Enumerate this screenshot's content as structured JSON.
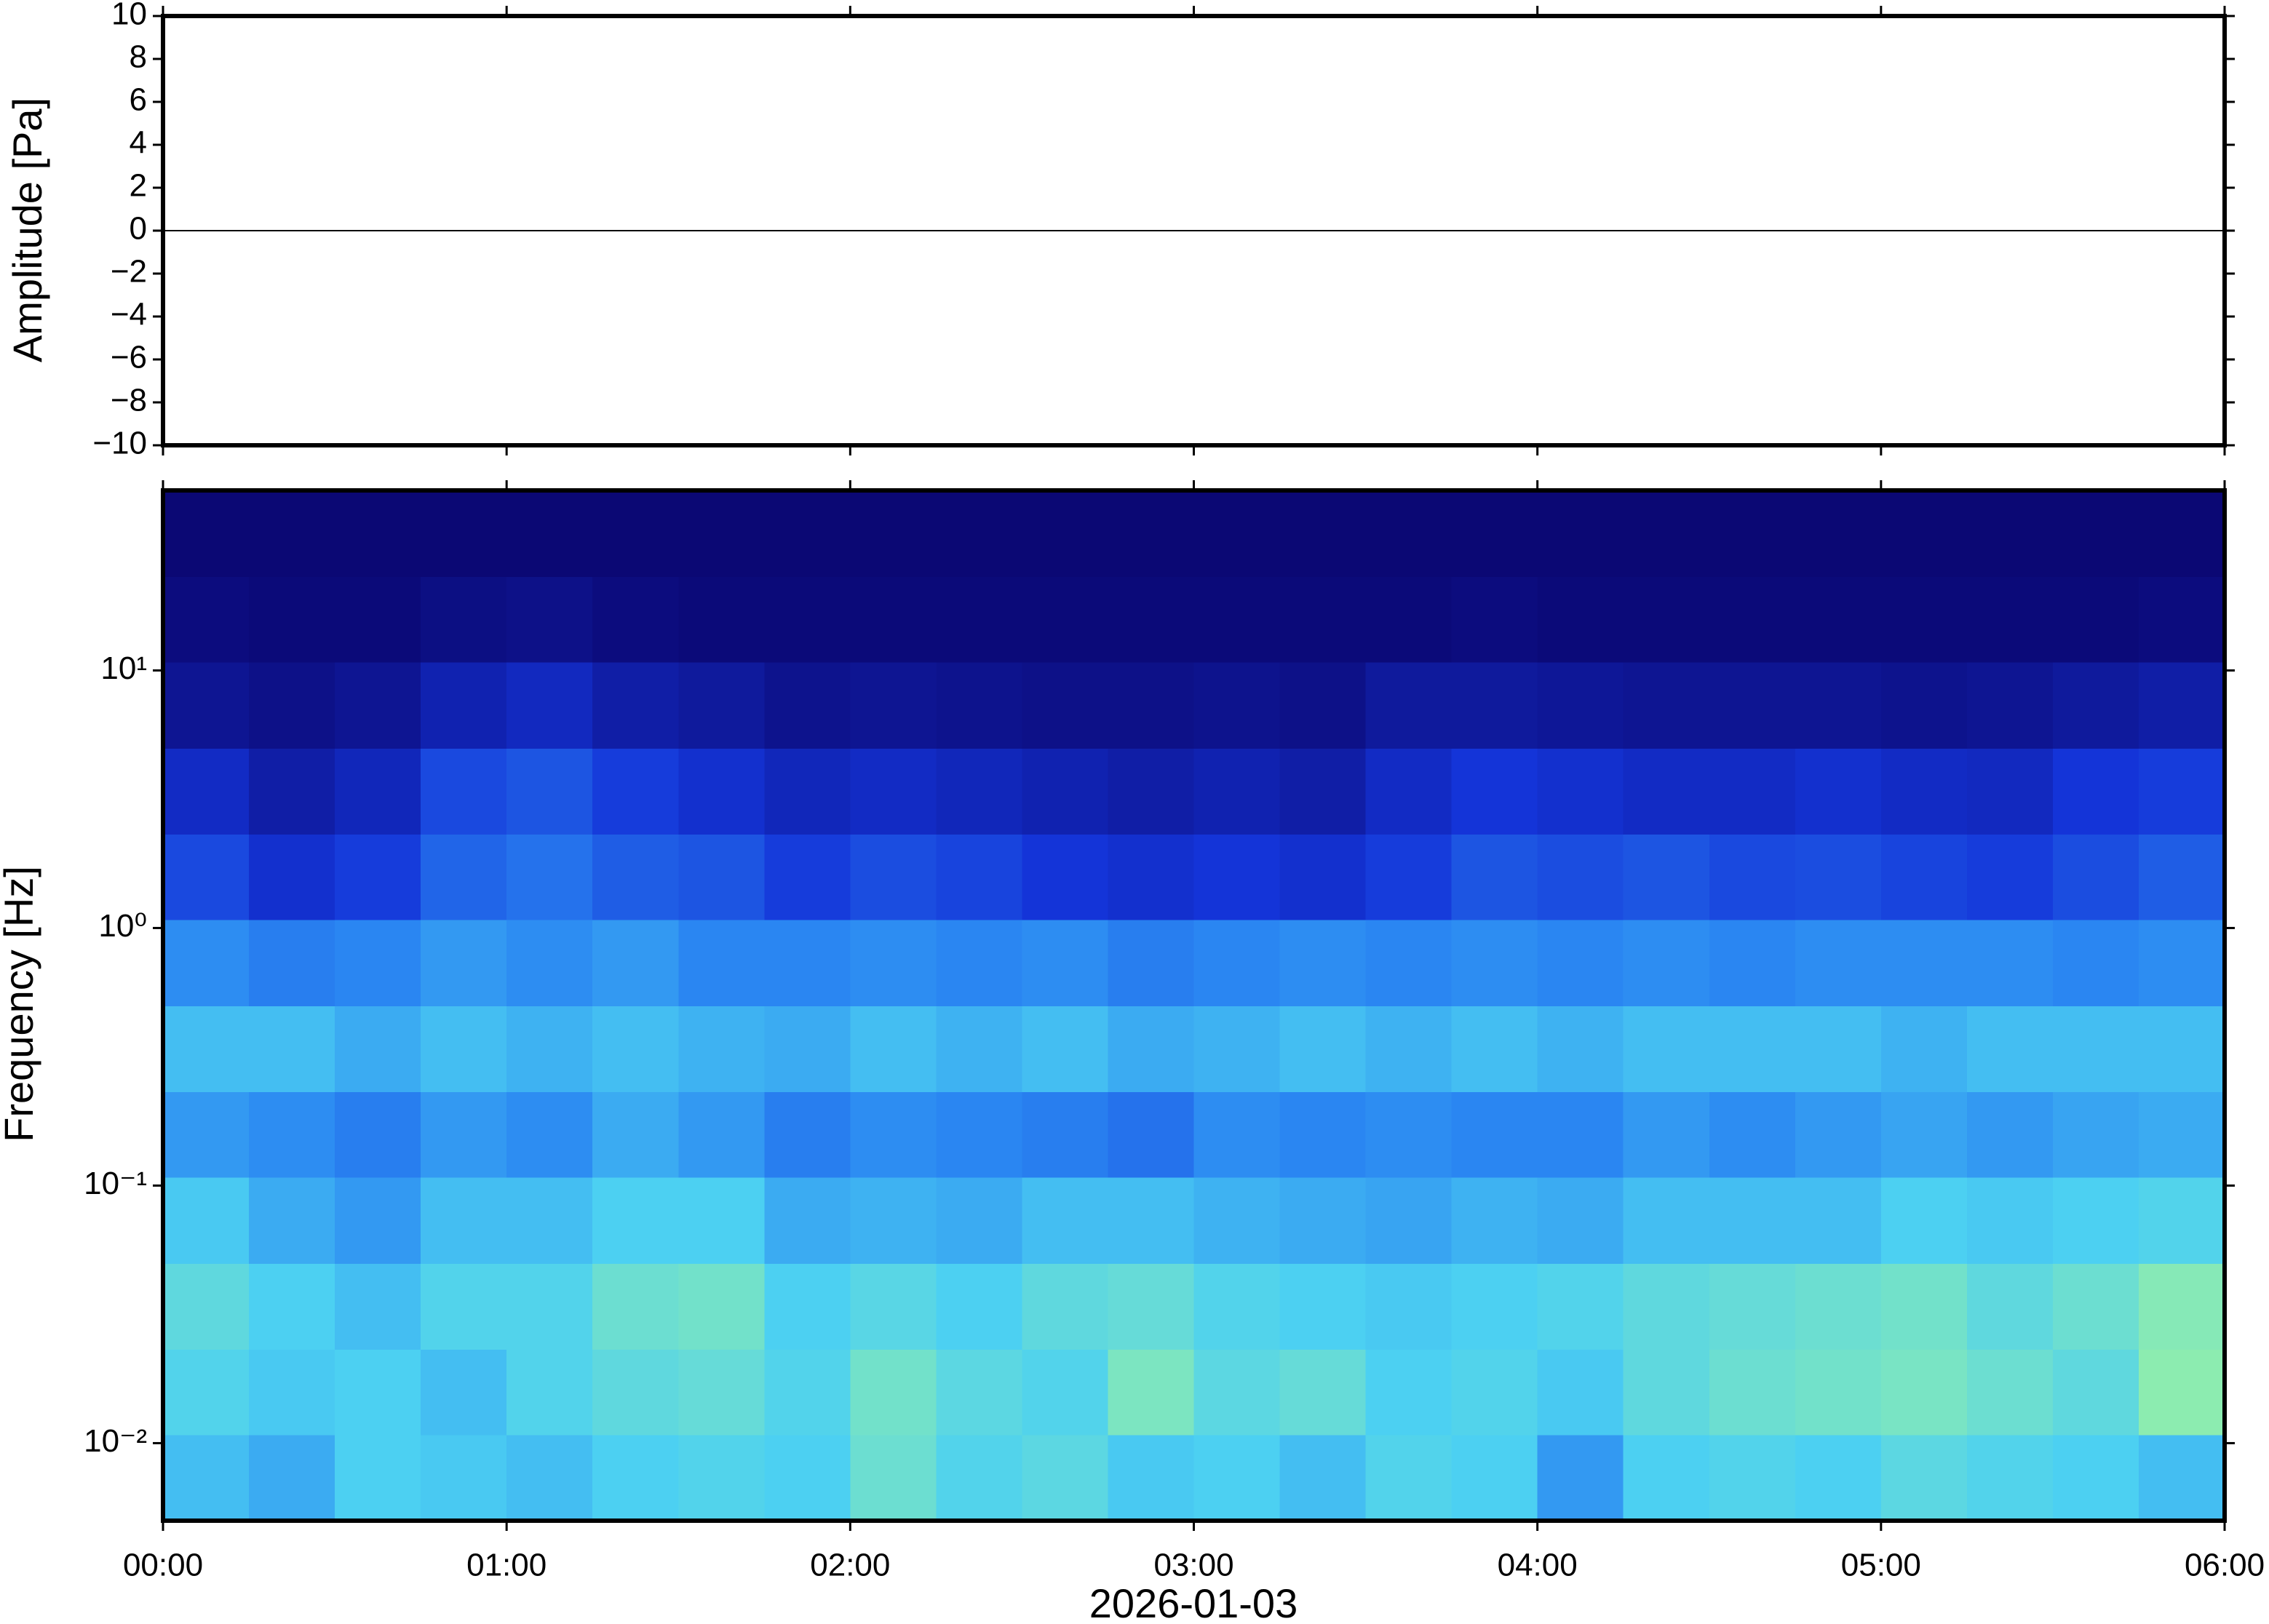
{
  "chart_data": [
    {
      "type": "line",
      "ylabel": "Amplitude [Pa]",
      "xlim": [
        "00:00",
        "06:00"
      ],
      "ylim": [
        -10,
        10
      ],
      "yticks": [
        {
          "value": -10,
          "label": "−10"
        },
        {
          "value": -8,
          "label": "−8"
        },
        {
          "value": -6,
          "label": "−6"
        },
        {
          "value": -4,
          "label": "−4"
        },
        {
          "value": -2,
          "label": "−2"
        },
        0,
        2,
        4,
        6,
        8,
        10
      ],
      "x": [
        "00:00",
        "00:15",
        "00:30",
        "00:45",
        "01:00",
        "01:15",
        "01:30",
        "01:45",
        "02:00",
        "02:15",
        "02:30",
        "02:45",
        "03:00",
        "03:15",
        "03:30",
        "03:45",
        "04:00",
        "04:15",
        "04:30",
        "04:45",
        "05:00",
        "05:15",
        "05:30",
        "05:45",
        "06:00"
      ],
      "values": [
        0,
        0,
        0,
        0,
        0,
        0,
        0,
        0,
        0,
        0,
        0,
        0,
        0,
        0,
        0,
        0,
        0,
        0,
        0,
        0,
        0,
        0,
        0,
        0,
        0
      ],
      "color": "#000000"
    },
    {
      "type": "heatmap",
      "ylabel": "Frequency [Hz]",
      "xlabel": "2026-01-03",
      "log_y": true,
      "xlim": [
        "00:00",
        "06:00"
      ],
      "xticks": [
        "00:00",
        "01:00",
        "02:00",
        "03:00",
        "04:00",
        "05:00",
        "06:00"
      ],
      "ylim": [
        0.005,
        50
      ],
      "yticks": [
        {
          "value": 0.01,
          "label": "10⁻²"
        },
        {
          "value": 0.1,
          "label": "10⁻¹"
        },
        {
          "value": 1,
          "label": "10⁰"
        },
        {
          "value": 10,
          "label": "10¹"
        }
      ],
      "time_edges": [
        "00:00",
        "00:15",
        "00:30",
        "00:45",
        "01:00",
        "01:15",
        "01:30",
        "01:45",
        "02:00",
        "02:15",
        "02:30",
        "02:45",
        "03:00",
        "03:15",
        "03:30",
        "03:45",
        "04:00",
        "04:15",
        "04:30",
        "04:45",
        "05:00",
        "05:15",
        "05:30",
        "05:45",
        "06:00"
      ],
      "frequency_edges": [
        0.005,
        0.0108,
        0.0232,
        0.05,
        0.108,
        0.232,
        0.5,
        1.08,
        2.32,
        5,
        10.8,
        23.2,
        50
      ],
      "zlim": [
        0,
        1
      ],
      "colormap": [
        "#0b0874",
        "#1434d8",
        "#2a86f2",
        "#4cd0f2",
        "#8cecb0",
        "#eef27e"
      ],
      "z": [
        [
          0.55,
          0.5,
          0.6,
          0.58,
          0.55,
          0.6,
          0.62,
          0.6,
          0.7,
          0.62,
          0.65,
          0.58,
          0.6,
          0.55,
          0.62,
          0.6,
          0.45,
          0.6,
          0.62,
          0.6,
          0.65,
          0.62,
          0.6,
          0.55
        ],
        [
          0.62,
          0.58,
          0.6,
          0.55,
          0.62,
          0.66,
          0.68,
          0.62,
          0.72,
          0.65,
          0.62,
          0.75,
          0.65,
          0.68,
          0.6,
          0.62,
          0.58,
          0.66,
          0.7,
          0.72,
          0.74,
          0.7,
          0.66,
          0.8
        ],
        [
          0.66,
          0.6,
          0.55,
          0.62,
          0.62,
          0.7,
          0.72,
          0.6,
          0.64,
          0.6,
          0.66,
          0.68,
          0.62,
          0.6,
          0.58,
          0.6,
          0.62,
          0.66,
          0.68,
          0.7,
          0.72,
          0.66,
          0.7,
          0.78
        ],
        [
          0.58,
          0.5,
          0.45,
          0.55,
          0.55,
          0.6,
          0.6,
          0.5,
          0.52,
          0.5,
          0.55,
          0.55,
          0.52,
          0.5,
          0.48,
          0.52,
          0.5,
          0.55,
          0.55,
          0.55,
          0.6,
          0.58,
          0.6,
          0.62
        ],
        [
          0.45,
          0.42,
          0.38,
          0.45,
          0.42,
          0.5,
          0.45,
          0.38,
          0.42,
          0.4,
          0.38,
          0.35,
          0.42,
          0.4,
          0.42,
          0.4,
          0.4,
          0.45,
          0.42,
          0.45,
          0.48,
          0.45,
          0.48,
          0.5
        ],
        [
          0.55,
          0.55,
          0.5,
          0.55,
          0.52,
          0.55,
          0.52,
          0.5,
          0.55,
          0.52,
          0.55,
          0.5,
          0.52,
          0.55,
          0.52,
          0.55,
          0.52,
          0.55,
          0.55,
          0.55,
          0.52,
          0.55,
          0.55,
          0.55
        ],
        [
          0.42,
          0.38,
          0.4,
          0.45,
          0.42,
          0.45,
          0.4,
          0.4,
          0.42,
          0.4,
          0.42,
          0.38,
          0.4,
          0.42,
          0.4,
          0.42,
          0.4,
          0.42,
          0.4,
          0.42,
          0.42,
          0.42,
          0.4,
          0.42
        ],
        [
          0.25,
          0.18,
          0.22,
          0.32,
          0.35,
          0.3,
          0.28,
          0.22,
          0.26,
          0.24,
          0.2,
          0.18,
          0.2,
          0.18,
          0.22,
          0.28,
          0.26,
          0.28,
          0.25,
          0.26,
          0.24,
          0.22,
          0.26,
          0.3
        ],
        [
          0.16,
          0.1,
          0.14,
          0.25,
          0.28,
          0.22,
          0.18,
          0.14,
          0.16,
          0.14,
          0.12,
          0.1,
          0.12,
          0.1,
          0.16,
          0.2,
          0.18,
          0.16,
          0.16,
          0.18,
          0.16,
          0.15,
          0.2,
          0.22
        ],
        [
          0.06,
          0.04,
          0.06,
          0.12,
          0.15,
          0.1,
          0.08,
          0.05,
          0.06,
          0.05,
          0.04,
          0.04,
          0.05,
          0.04,
          0.08,
          0.08,
          0.07,
          0.06,
          0.06,
          0.06,
          0.05,
          0.06,
          0.08,
          0.1
        ],
        [
          0.02,
          0.01,
          0.01,
          0.03,
          0.04,
          0.02,
          0.01,
          0.01,
          0.01,
          0.01,
          0.01,
          0.01,
          0.01,
          0.01,
          0.01,
          0.02,
          0.01,
          0.01,
          0.01,
          0.01,
          0.01,
          0.01,
          0.01,
          0.02
        ],
        [
          0,
          0,
          0,
          0,
          0,
          0,
          0,
          0,
          0,
          0,
          0,
          0,
          0,
          0,
          0,
          0,
          0,
          0,
          0,
          0,
          0,
          0,
          0,
          0
        ]
      ]
    }
  ]
}
